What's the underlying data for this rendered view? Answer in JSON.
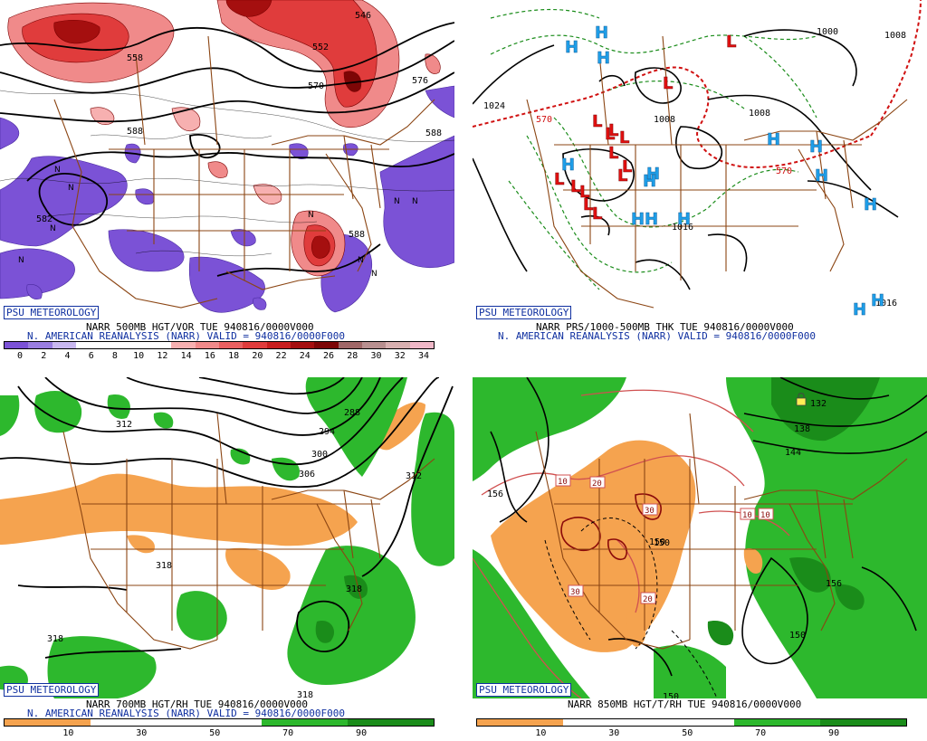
{
  "badge": "PSU METEOROLOGY",
  "panels": [
    {
      "line1": "NARR 500MB HGT/VOR TUE 940816/0000V000",
      "line2": "N. AMERICAN REANALYSIS (NARR) VALID = 940816/0000F000",
      "scale_labels": [
        "0",
        "2",
        "4",
        "6",
        "8",
        "10",
        "12",
        "14",
        "16",
        "18",
        "20",
        "22",
        "24",
        "26",
        "28",
        "30",
        "32",
        "34"
      ],
      "scale_colors": [
        "#7b52d6",
        "#9a7ee0",
        "#c9b8ef",
        "#ffffff",
        "#ffffff",
        "#ffffff",
        "#ffffff",
        "#f7b0b0",
        "#f08a8a",
        "#ea6060",
        "#e03c3c",
        "#c81e1e",
        "#a50f0f",
        "#7d0606",
        "#a06868",
        "#b89090",
        "#d8b0b0",
        "#f0b8c8"
      ],
      "contour_labels": [
        "546",
        "552",
        "558",
        "570",
        "576",
        "588",
        "588",
        "582",
        "588"
      ]
    },
    {
      "line1": "NARR PRS/1000-500MB THK TUE 940816/0000V000",
      "line2": "N. AMERICAN REANALYSIS (NARR) VALID = 940816/0000F000",
      "contour_labels": [
        "1024",
        "1000",
        "1008",
        "1008",
        "1008",
        "1016",
        "570",
        "570",
        "1016"
      ],
      "highs": [
        "H",
        "H",
        "H",
        "H",
        "H",
        "H",
        "H",
        "H",
        "H",
        "H",
        "H",
        "H",
        "H",
        "H",
        "H"
      ],
      "lows": [
        "L",
        "L",
        "L",
        "L",
        "L",
        "L",
        "L",
        "L",
        "L",
        "L",
        "L",
        "L",
        "L",
        "L"
      ]
    },
    {
      "line1": "NARR 700MB HGT/RH TUE 940816/0000V000",
      "line2": "N. AMERICAN REANALYSIS (NARR) VALID = 940816/0000F000",
      "scale_labels": [
        "10",
        "30",
        "50",
        "70",
        "90"
      ],
      "contour_labels": [
        "312",
        "294",
        "288",
        "300",
        "306",
        "312",
        "318",
        "318",
        "318",
        "318"
      ]
    },
    {
      "line1": "NARR 850MB HGT/T/RH TUE 940816/0000V000",
      "line2": "",
      "scale_labels": [
        "10",
        "30",
        "50",
        "70",
        "90"
      ],
      "contour_labels": [
        "156",
        "150",
        "150",
        "156",
        "150",
        "138",
        "144",
        "132",
        "150"
      ],
      "temp_labels": [
        "10",
        "20",
        "30",
        "10",
        "10",
        "30",
        "20"
      ]
    }
  ],
  "colors": {
    "vor_neg": "#7b52d6",
    "vor_pos": "#e03c3c",
    "vor_dark": "#8b0a0a",
    "rh_dry": "#f5a34f",
    "rh_moist": "#2db82d",
    "rh_wet": "#1a8c1a",
    "border": "#8b4513",
    "high": "#1e9ee8",
    "low": "#e01010",
    "thickness": "#d01010",
    "thk_green": "#1a8c1a"
  }
}
